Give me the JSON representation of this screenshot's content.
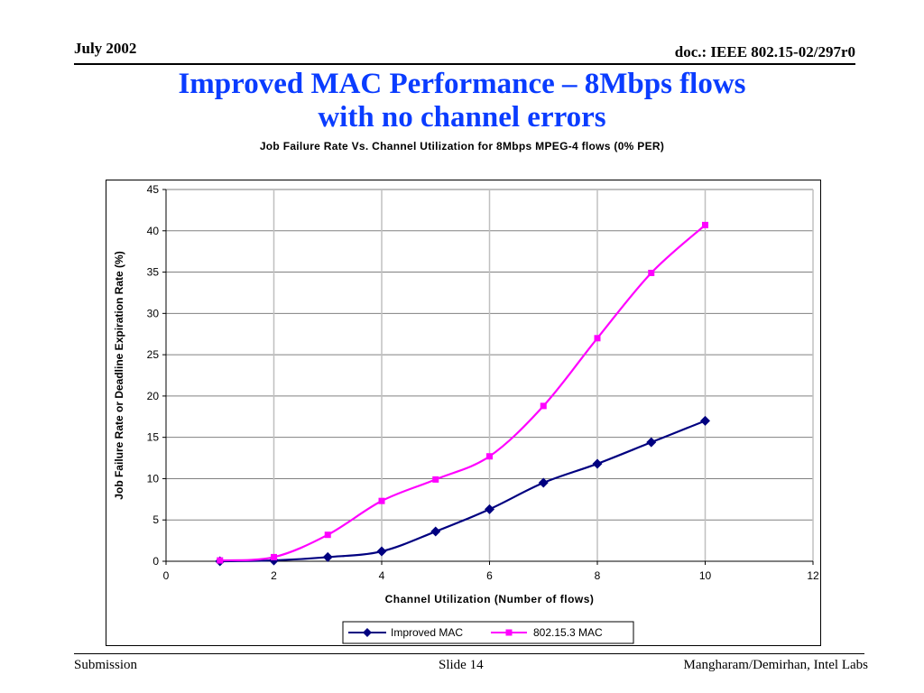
{
  "header": {
    "date": "July 2002",
    "doc": "doc.: IEEE 802.15-02/297r0"
  },
  "slide_title": {
    "line1": "Improved MAC Performance – 8Mbps flows",
    "line2": "with no channel errors"
  },
  "footer": {
    "left": "Submission",
    "center": "Slide 14",
    "right": "Mangharam/Demirhan, Intel Labs"
  },
  "colors": {
    "title": "#0a3cff",
    "series1": "#000080",
    "series2": "#ff00ff",
    "grid": "#c0c0c0"
  },
  "chart_data": {
    "type": "line",
    "title": "Job Failure Rate Vs. Channel Utilization for 8Mbps MPEG-4 flows (0% PER)",
    "xlabel": "Channel Utilization (Number of flows)",
    "ylabel": "Job Failure Rate or Deadline Expiration Rate (%)",
    "xlim": [
      0,
      12
    ],
    "ylim": [
      0,
      45
    ],
    "xticks": [
      0,
      2,
      4,
      6,
      8,
      10,
      12
    ],
    "yticks": [
      0,
      5,
      10,
      15,
      20,
      25,
      30,
      35,
      40,
      45
    ],
    "grid": true,
    "legend_position": "bottom",
    "x": [
      1,
      2,
      3,
      4,
      5,
      6,
      7,
      8,
      9,
      10
    ],
    "series": [
      {
        "name": "Improved MAC",
        "marker": "diamond",
        "values": [
          0.0,
          0.1,
          0.5,
          1.2,
          3.6,
          6.3,
          9.5,
          11.8,
          14.4,
          17.0
        ]
      },
      {
        "name": "802.15.3 MAC",
        "marker": "square",
        "values": [
          0.1,
          0.5,
          3.2,
          7.3,
          9.9,
          12.7,
          18.8,
          27.0,
          34.9,
          40.7
        ]
      }
    ]
  }
}
